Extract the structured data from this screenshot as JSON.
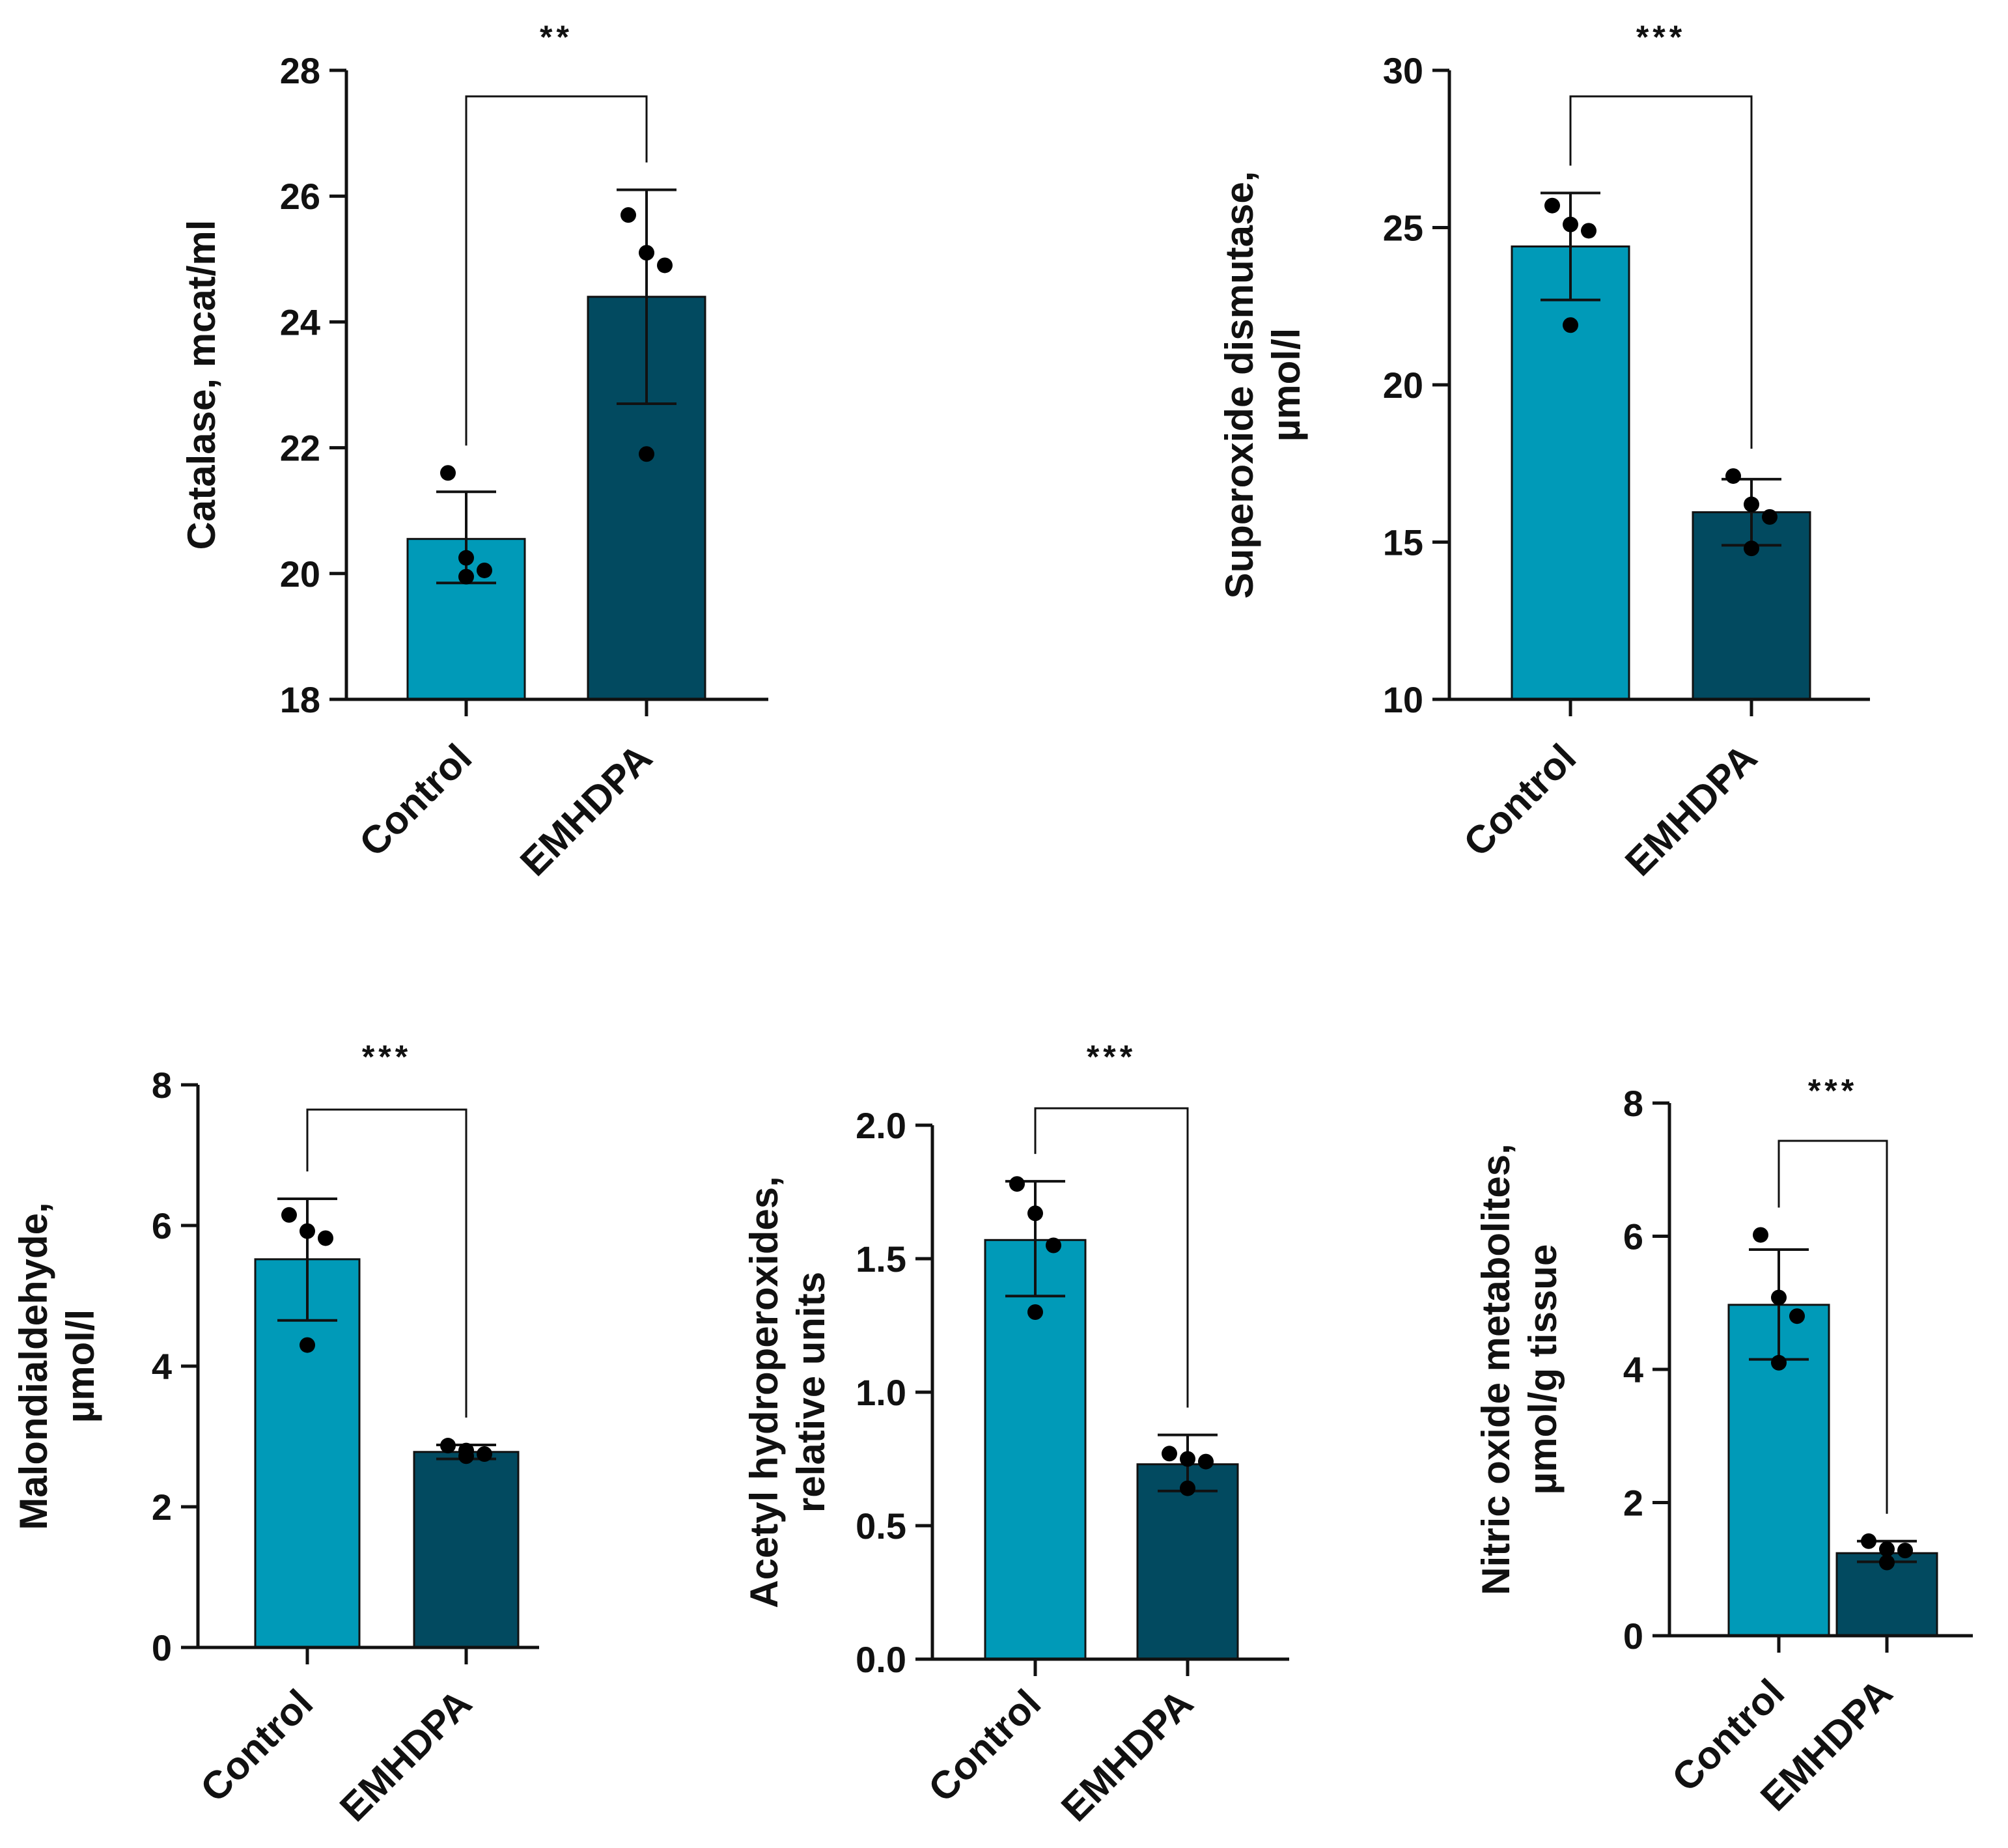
{
  "colors": {
    "control": "#009ab8",
    "emhdpa": "#024a60",
    "axis": "#111111",
    "point": "#000000"
  },
  "chart_data": [
    {
      "type": "bar",
      "categories": [
        "Control",
        "EMHDPA"
      ],
      "values": [
        20.55,
        24.4
      ],
      "error": [
        [
          19.85,
          21.3
        ],
        [
          22.7,
          26.1
        ]
      ],
      "points": [
        [
          21.6,
          20.25,
          20.05,
          19.95
        ],
        [
          25.7,
          25.1,
          24.9,
          21.9
        ]
      ],
      "ylabel": [
        "Catalase, mcat/ml"
      ],
      "ylim": [
        18,
        28
      ],
      "yticks": [
        18,
        20,
        22,
        24,
        26,
        28
      ],
      "ytick_labels": [
        "18",
        "20",
        "22",
        "24",
        "26",
        "28"
      ],
      "significance": "**"
    },
    {
      "type": "bar",
      "categories": [
        "Control",
        "EMHDPA"
      ],
      "values": [
        24.4,
        15.95
      ],
      "error": [
        [
          22.7,
          26.1
        ],
        [
          14.9,
          17.0
        ]
      ],
      "points": [
        [
          25.7,
          25.1,
          24.9,
          21.9
        ],
        [
          17.1,
          16.2,
          15.8,
          14.8
        ]
      ],
      "ylabel": [
        "Superoxide dismutase,",
        "µmol/l"
      ],
      "ylim": [
        10,
        30
      ],
      "yticks": [
        10,
        15,
        20,
        25,
        30
      ],
      "ytick_labels": [
        "10",
        "15",
        "20",
        "25",
        "30"
      ],
      "significance": "***"
    },
    {
      "type": "bar",
      "categories": [
        "Control",
        "EMHDPA"
      ],
      "values": [
        5.52,
        2.78
      ],
      "error": [
        [
          4.65,
          6.38
        ],
        [
          2.68,
          2.88
        ]
      ],
      "points": [
        [
          6.15,
          5.92,
          5.82,
          4.3
        ],
        [
          2.87,
          2.8,
          2.75,
          2.72
        ]
      ],
      "ylabel": [
        "Malondialdehyde,",
        "µmol/l"
      ],
      "ylim": [
        0,
        8
      ],
      "yticks": [
        0,
        2,
        4,
        6,
        8
      ],
      "ytick_labels": [
        "0",
        "2",
        "4",
        "6",
        "8"
      ],
      "significance": "***"
    },
    {
      "type": "bar",
      "categories": [
        "Control",
        "EMHDPA"
      ],
      "values": [
        1.57,
        0.73
      ],
      "error": [
        [
          1.36,
          1.79
        ],
        [
          0.63,
          0.84
        ]
      ],
      "points": [
        [
          1.78,
          1.67,
          1.55,
          1.3
        ],
        [
          0.77,
          0.75,
          0.74,
          0.64
        ]
      ],
      "ylabel": [
        "Acetyl hydroperoxides,",
        "relative units"
      ],
      "ylim": [
        0,
        2
      ],
      "yticks": [
        0,
        0.5,
        1,
        1.5,
        2
      ],
      "ytick_labels": [
        "0.0",
        "0.5",
        "1.0",
        "1.5",
        "2.0"
      ],
      "significance": "***"
    },
    {
      "type": "bar",
      "categories": [
        "Control",
        "EMHDPA"
      ],
      "values": [
        4.97,
        1.24
      ],
      "error": [
        [
          4.15,
          5.8
        ],
        [
          1.11,
          1.42
        ]
      ],
      "points": [
        [
          6.02,
          5.08,
          4.8,
          4.1
        ],
        [
          1.42,
          1.3,
          1.28,
          1.1
        ]
      ],
      "ylabel": [
        "Nitric oxide metabolites,",
        "µmol/g tissue"
      ],
      "ylim": [
        0,
        8
      ],
      "yticks": [
        0,
        2,
        4,
        6,
        8
      ],
      "ytick_labels": [
        "0",
        "2",
        "4",
        "6",
        "8"
      ],
      "significance": "***"
    }
  ]
}
